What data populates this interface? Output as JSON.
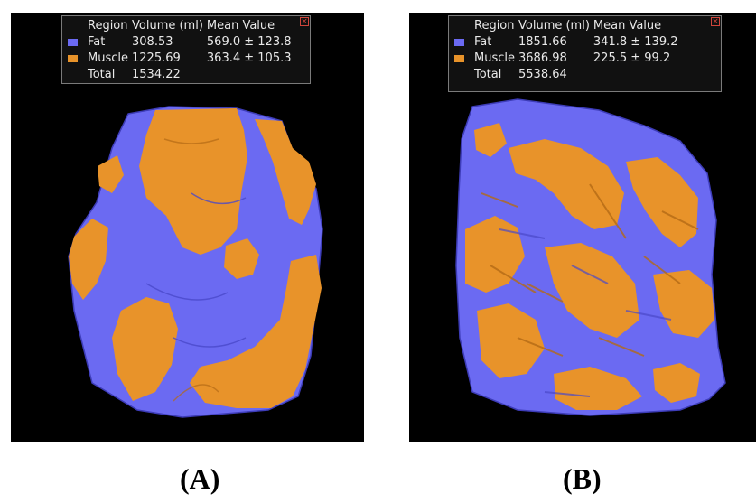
{
  "colors": {
    "fat": "#6b6af2",
    "muscle": "#e8932a",
    "panel_bg": "#000000",
    "legend_bg": "#121212"
  },
  "panels": [
    {
      "label": "(A)",
      "legend": {
        "headers": [
          "Region",
          "Volume (ml)",
          "Mean Value"
        ],
        "rows": [
          {
            "region": "Fat",
            "volume": "308.53",
            "mean": "569.0 ± 123.8",
            "swatch": "fat"
          },
          {
            "region": "Muscle",
            "volume": "1225.69",
            "mean": "363.4 ± 105.3",
            "swatch": "muscle"
          },
          {
            "region": "Total",
            "volume": "1534.22",
            "mean": ""
          }
        ]
      }
    },
    {
      "label": "(B)",
      "legend": {
        "headers": [
          "Region",
          "Volume (ml)",
          "Mean Value"
        ],
        "rows": [
          {
            "region": "Fat",
            "volume": "1851.66",
            "mean": "341.8 ± 139.2",
            "swatch": "fat"
          },
          {
            "region": "Muscle",
            "volume": "3686.98",
            "mean": "225.5 ± 99.2",
            "swatch": "muscle"
          },
          {
            "region": "Total",
            "volume": "5538.64",
            "mean": ""
          }
        ]
      }
    }
  ]
}
